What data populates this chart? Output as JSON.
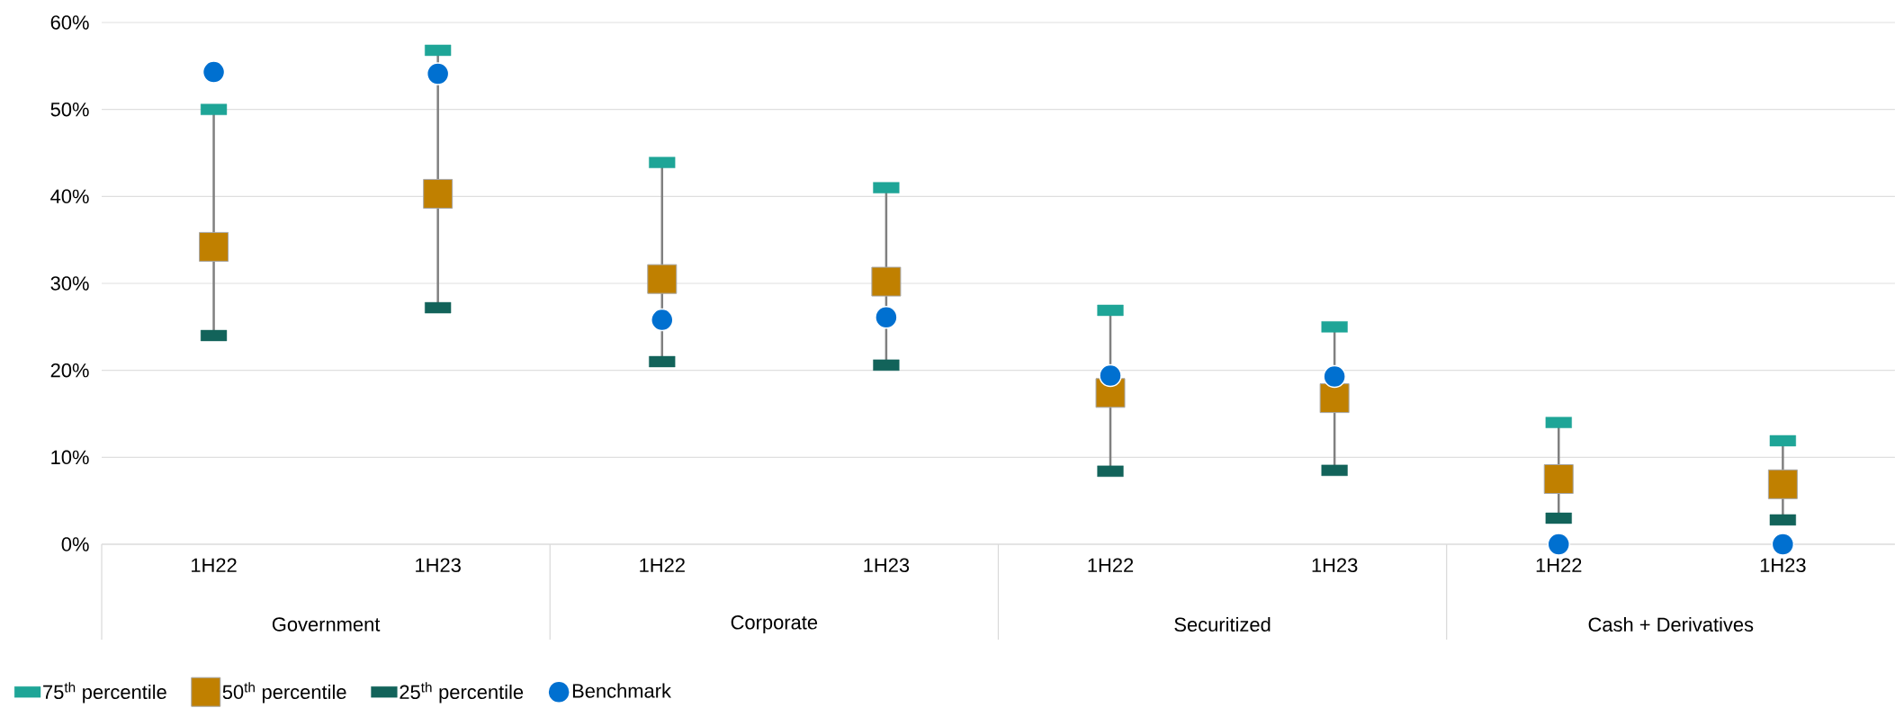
{
  "chart_data": {
    "type": "scatter",
    "categories": [
      "1H22",
      "1H23",
      "1H22",
      "1H23",
      "1H22",
      "1H23",
      "1H22",
      "1H23"
    ],
    "series": [
      {
        "name": "75$^{th}$ percentile",
        "color": "#1ea597",
        "values": [
          50.0,
          56.8,
          43.9,
          41.0,
          26.9,
          25.0,
          14.0,
          11.9
        ]
      },
      {
        "name": "50$^{th}$ percentile",
        "color": "#c08000",
        "marker": "square",
        "values": [
          34.2,
          40.3,
          30.5,
          30.2,
          17.4,
          16.8,
          7.5,
          6.9
        ]
      },
      {
        "name": "25$^{th}$ percentile",
        "color": "#12635a",
        "values": [
          24.0,
          27.2,
          21.0,
          20.6,
          8.4,
          8.5,
          3.0,
          2.8
        ]
      },
      {
        "name": "Benchmark",
        "color": "#0070d0",
        "marker": "circle",
        "values": [
          54.3,
          54.1,
          25.8,
          26.1,
          19.4,
          19.3,
          0,
          0
        ]
      }
    ],
    "ylim": [
      0,
      60
    ],
    "yticks": [
      {
        "value": 0,
        "label": "0%"
      },
      {
        "value": 10,
        "label": "10%"
      },
      {
        "value": 20,
        "label": "20%"
      },
      {
        "value": 30,
        "label": "30%"
      },
      {
        "value": 40,
        "label": "40%"
      },
      {
        "value": 50,
        "label": "50%"
      },
      {
        "value": 60,
        "label": "60%"
      }
    ],
    "grid": "y",
    "legend": "bottom left",
    "annotations": [
      "Government",
      "Corporate",
      "Securitized",
      "Cash + Derivatives"
    ]
  }
}
